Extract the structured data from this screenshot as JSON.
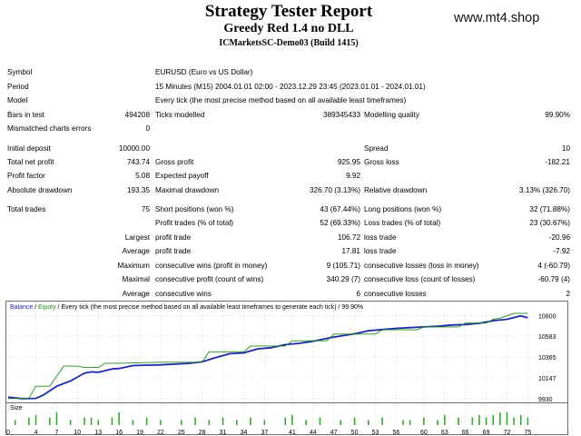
{
  "header": {
    "title": "Strategy Tester Report",
    "subtitle": "Greedy Red 1.4 no DLL",
    "server": "ICMarketsSC-Demo03 (Build 1415)",
    "site": "www.mt4.shop"
  },
  "report": {
    "symbol_label": "Symbol",
    "symbol_value": "EURUSD (Euro vs US Dollar)",
    "period_label": "Period",
    "period_value": "15 Minutes (M15) 2004.01.01 02:00 - 2023.12.29 23:45 (2023.01.01 - 2024.01.01)",
    "model_label": "Model",
    "model_value": "Every tick (the most precise method based on all available least timeframes)",
    "bars_label": "Bars in test",
    "bars_value": "494208",
    "ticks_label": "Ticks modelled",
    "ticks_value": "389345433",
    "quality_label": "Modelling quality",
    "quality_value": "99.90%",
    "mismatch_label": "Mismatched charts errors",
    "mismatch_value": "0",
    "deposit_label": "Initial deposit",
    "deposit_value": "10000.00",
    "spread_label": "Spread",
    "spread_value": "10",
    "netprofit_label": "Total net profit",
    "netprofit_value": "743.74",
    "grossprofit_label": "Gross profit",
    "grossprofit_value": "925.95",
    "grossloss_label": "Gross loss",
    "grossloss_value": "-182.21",
    "pf_label": "Profit factor",
    "pf_value": "5.08",
    "payoff_label": "Expected payoff",
    "payoff_value": "9.92",
    "absdd_label": "Absolute drawdown",
    "absdd_value": "193.35",
    "maxdd_label": "Maximal drawdown",
    "maxdd_value": "326.70 (3.13%)",
    "reldd_label": "Relative drawdown",
    "reldd_value": "3.13% (326.70)",
    "trades_label": "Total trades",
    "trades_value": "75",
    "short_label": "Short positions (won %)",
    "short_value": "43 (67.44%)",
    "long_label": "Long positions (won %)",
    "long_value": "32 (71.88%)",
    "ptrades_label": "Profit trades (% of total)",
    "ptrades_value": "52 (69.33%)",
    "ltrades_label": "Loss trades (% of total)",
    "ltrades_value": "23 (30.67%)",
    "largest_label": "Largest",
    "average_label": "Average",
    "maximum_label": "Maximum",
    "maximal_label": "Maximal",
    "average2_label": "Average",
    "pt_label": "profit trade",
    "largest_pt_value": "106.72",
    "lt_label": "loss trade",
    "largest_lt_value": "-20.96",
    "pt2_label": "profit trade",
    "average_pt_value": "17.81",
    "lt2_label": "loss trade",
    "average_lt_value": "-7.92",
    "cw_label": "consecutive wins (profit in money)",
    "cw_value": "9 (105.71)",
    "cl_label": "consecutive losses (loss in money)",
    "cl_value": "4 (-60.79)",
    "cp_label": "consecutive profit (count of wins)",
    "cp_value": "340.29 (7)",
    "clc_label": "consecutive loss (count of losses)",
    "clc_value": "-60.79 (4)",
    "acw_label": "consecutive wins",
    "acw_value": "6",
    "acl_label": "consecutive losses",
    "acl_value": "2"
  },
  "chart": {
    "legend_balance": "Balance",
    "legend_sep": " / ",
    "legend_equity": "Equity",
    "legend_rest": " / Every tick (the most precise method based on all available least timeframes to generate each tick) / 99.90%",
    "size_label": "Size",
    "colors": {
      "balance": "#1a2aa8",
      "equity": "#1d8a1d",
      "volume": "#33aa33",
      "grid": "#c8c8c8"
    }
  },
  "chart_data": {
    "type": "line",
    "xlabel": "",
    "ylabel": "",
    "x_ticks": [
      0,
      4,
      7,
      10,
      13,
      16,
      19,
      22,
      25,
      28,
      31,
      34,
      37,
      41,
      44,
      47,
      50,
      53,
      56,
      60,
      63,
      66,
      69,
      72,
      75
    ],
    "y_ticks": [
      9930,
      10147,
      10365,
      10583,
      10800
    ],
    "xlim": [
      0,
      76
    ],
    "ylim": [
      9900,
      10850
    ],
    "series": [
      {
        "name": "Balance",
        "x": [
          0,
          2,
          4,
          5,
          7,
          9,
          11,
          12,
          13,
          15,
          16,
          18,
          20,
          22,
          24,
          26,
          28,
          30,
          32,
          34,
          36,
          38,
          40,
          42,
          44,
          46,
          48,
          50,
          52,
          54,
          56,
          58,
          60,
          62,
          64,
          66,
          68,
          70,
          72,
          74,
          75
        ],
        "y": [
          9945,
          9930,
          9932,
          9965,
          10060,
          10115,
          10195,
          10210,
          10205,
          10240,
          10245,
          10275,
          10280,
          10283,
          10290,
          10298,
          10315,
          10360,
          10400,
          10408,
          10450,
          10462,
          10495,
          10508,
          10530,
          10560,
          10585,
          10608,
          10640,
          10652,
          10665,
          10672,
          10680,
          10688,
          10700,
          10705,
          10718,
          10745,
          10760,
          10795,
          10775
        ]
      },
      {
        "name": "Equity",
        "x": [
          0,
          3,
          4,
          6,
          8,
          10,
          11,
          13,
          14,
          16,
          22,
          28,
          29,
          34,
          35,
          40,
          41,
          46,
          47,
          53,
          54,
          59,
          60,
          65,
          66,
          69,
          70,
          71,
          73,
          75
        ],
        "y": [
          9930,
          9935,
          10060,
          10060,
          10270,
          10270,
          10255,
          10255,
          10300,
          10300,
          10310,
          10310,
          10420,
          10420,
          10480,
          10480,
          10535,
          10535,
          10605,
          10605,
          10650,
          10650,
          10680,
          10680,
          10720,
          10720,
          10760,
          10770,
          10822,
          10822
        ]
      }
    ],
    "volume": {
      "x": [
        1,
        3,
        4,
        6,
        7,
        9,
        11,
        12,
        13,
        15,
        16,
        18,
        20,
        22,
        25,
        27,
        29,
        31,
        33,
        35,
        37,
        40,
        41,
        43,
        45,
        48,
        50,
        52,
        54,
        57,
        58,
        60,
        62,
        63,
        65,
        67,
        68,
        69,
        70,
        71,
        72,
        73,
        74,
        75
      ],
      "y": [
        2,
        3,
        4,
        3,
        5,
        2,
        3,
        3,
        2,
        3,
        5,
        2,
        3,
        2,
        2,
        3,
        2,
        3,
        2,
        3,
        2,
        3,
        4,
        2,
        3,
        2,
        3,
        2,
        3,
        2,
        2,
        3,
        2,
        4,
        3,
        3,
        4,
        3,
        4,
        5,
        5,
        3,
        4,
        3
      ]
    }
  }
}
